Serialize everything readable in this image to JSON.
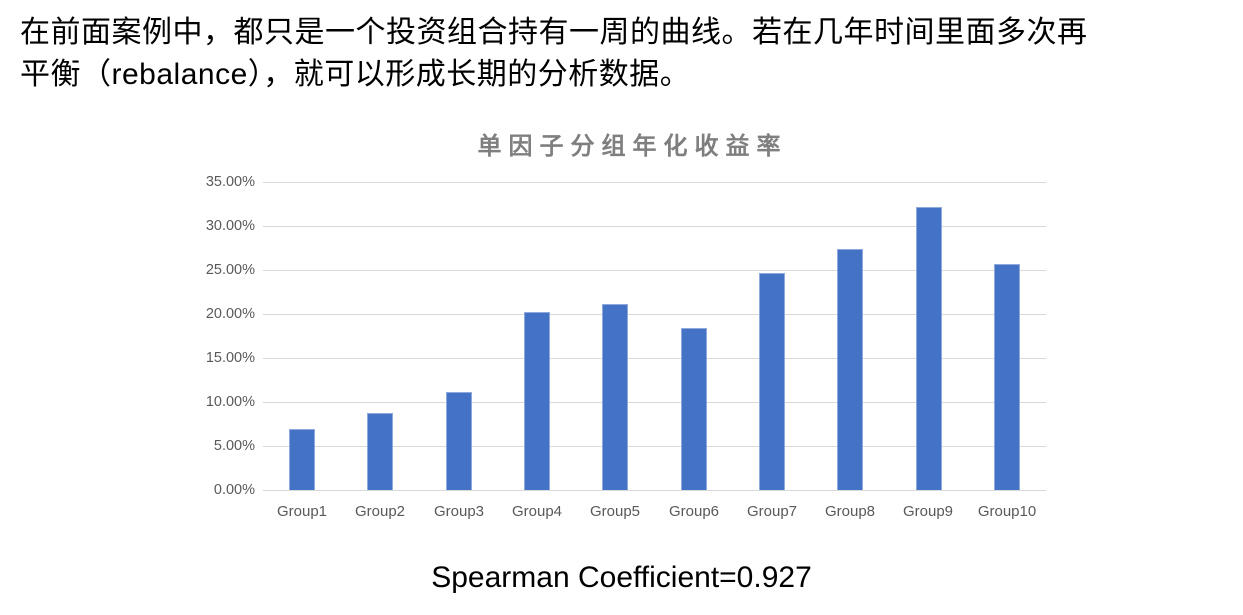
{
  "intro": {
    "line1": "在前面案例中，都只是一个投资组合持有一周的曲线。若在几年时间里面多次再",
    "line2": "平衡（rebalance），就可以形成长期的分析数据。"
  },
  "caption": "Spearman Coefficient=0.927",
  "colors": {
    "bar_fill": "#4472C4",
    "bar_border": "#8FA9DC",
    "gridline": "#D9D9D9",
    "axis_label": "#595959",
    "title_color": "#7F7F7F",
    "body_text": "#000000",
    "background": "#FFFFFF"
  },
  "chart_data": {
    "type": "bar",
    "title": "单因子分组年化收益率",
    "categories": [
      "Group1",
      "Group2",
      "Group3",
      "Group4",
      "Group5",
      "Group6",
      "Group7",
      "Group8",
      "Group9",
      "Group10"
    ],
    "values": [
      6.9,
      8.8,
      11.1,
      20.2,
      21.1,
      18.4,
      24.7,
      27.4,
      32.2,
      25.7
    ],
    "value_unit": "percent",
    "y_ticks_top_to_bottom": [
      "35.00%",
      "30.00%",
      "25.00%",
      "20.00%",
      "15.00%",
      "10.00%",
      "5.00%",
      "0.00%"
    ],
    "ylim": [
      0,
      35
    ],
    "ytick_step_pct": 5,
    "grid": true,
    "legend": "none",
    "xlabel": "",
    "ylabel": ""
  }
}
